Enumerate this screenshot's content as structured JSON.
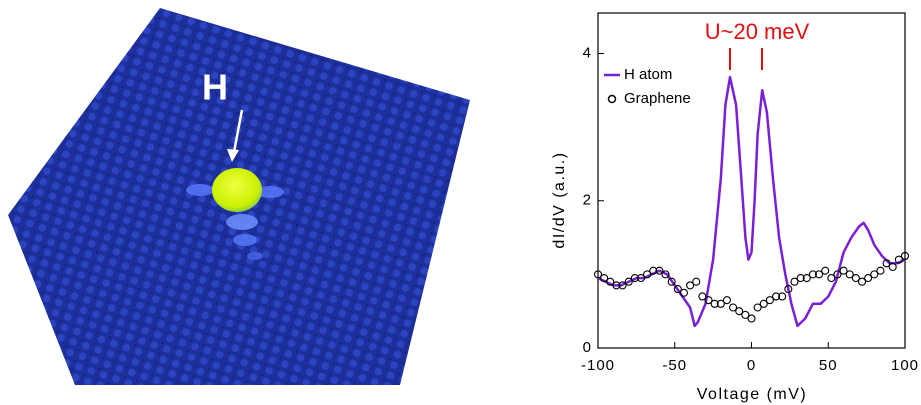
{
  "image": {
    "label": "H"
  },
  "chart_data": {
    "type": "line",
    "annotation": "U~20 meV",
    "xlabel": "Voltage (mV)",
    "ylabel": "dI/dV (a.u.)",
    "xlim": [
      -100,
      100
    ],
    "ylim": [
      0,
      4.55
    ],
    "xticks": [
      -100,
      -50,
      0,
      50,
      100
    ],
    "yticks": [
      0,
      2,
      4
    ],
    "legend": "upper left",
    "series": [
      {
        "name": "H atom",
        "color": "#7a1fd8",
        "marker": "line",
        "x": [
          -100,
          -95,
          -90,
          -85,
          -80,
          -75,
          -70,
          -65,
          -60,
          -55,
          -50,
          -45,
          -40,
          -37,
          -35,
          -30,
          -25,
          -20,
          -17,
          -14,
          -10,
          -7,
          -4,
          -2,
          0,
          2,
          4,
          7,
          10,
          14,
          18,
          22,
          26,
          30,
          35,
          40,
          45,
          50,
          55,
          60,
          65,
          70,
          73,
          76,
          80,
          85,
          90,
          95,
          100
        ],
        "values": [
          0.95,
          0.9,
          0.85,
          0.85,
          0.9,
          0.95,
          0.95,
          1.0,
          1.05,
          1.0,
          0.85,
          0.7,
          0.55,
          0.3,
          0.35,
          0.6,
          1.2,
          2.3,
          3.3,
          3.68,
          3.3,
          2.4,
          1.5,
          1.2,
          1.3,
          2.0,
          2.9,
          3.5,
          3.2,
          2.3,
          1.5,
          1.0,
          0.6,
          0.3,
          0.4,
          0.6,
          0.6,
          0.7,
          0.9,
          1.3,
          1.5,
          1.65,
          1.7,
          1.6,
          1.4,
          1.25,
          1.15,
          1.15,
          1.2
        ]
      },
      {
        "name": "Graphene",
        "color": "#000000",
        "marker": "circle",
        "x": [
          -100,
          -96,
          -92,
          -88,
          -84,
          -80,
          -76,
          -72,
          -68,
          -64,
          -60,
          -56,
          -52,
          -48,
          -44,
          -40,
          -36,
          -32,
          -28,
          -24,
          -20,
          -16,
          -12,
          -8,
          -4,
          0,
          4,
          8,
          12,
          16,
          20,
          24,
          28,
          32,
          36,
          40,
          44,
          48,
          52,
          56,
          60,
          64,
          68,
          72,
          76,
          80,
          84,
          88,
          92,
          96,
          100
        ],
        "values": [
          1.0,
          0.95,
          0.9,
          0.85,
          0.85,
          0.9,
          0.95,
          0.95,
          1.0,
          1.05,
          1.05,
          1.0,
          0.9,
          0.8,
          0.75,
          0.85,
          0.9,
          0.7,
          0.65,
          0.6,
          0.6,
          0.65,
          0.55,
          0.5,
          0.45,
          0.4,
          0.55,
          0.6,
          0.65,
          0.7,
          0.7,
          0.8,
          0.9,
          0.95,
          0.95,
          1.0,
          1.0,
          1.05,
          0.95,
          1.0,
          1.05,
          1.0,
          0.95,
          0.9,
          0.95,
          1.0,
          1.05,
          1.15,
          1.1,
          1.2,
          1.25
        ]
      }
    ]
  }
}
